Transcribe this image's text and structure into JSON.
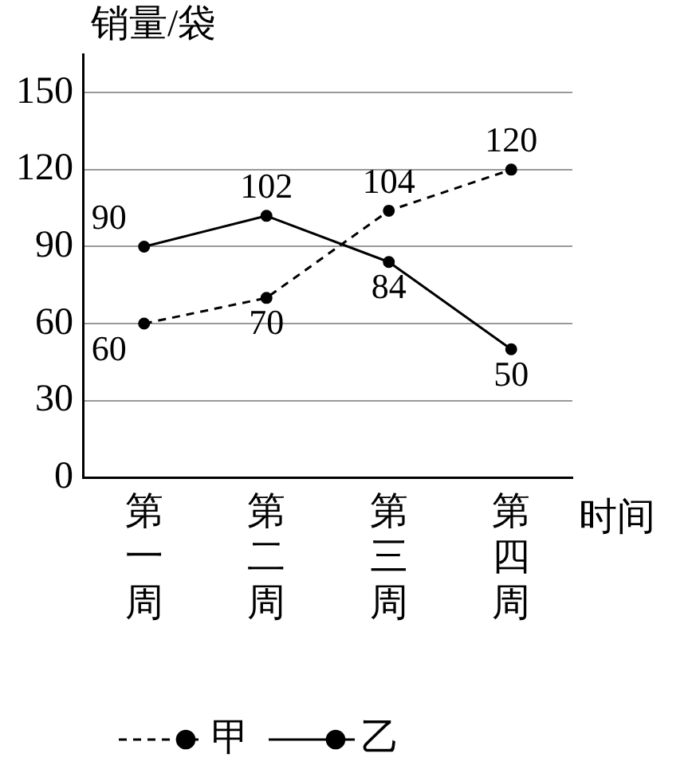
{
  "chart_data": {
    "type": "line",
    "xlabel": "时间",
    "ylabel": "销量/袋",
    "categories": [
      "第一周",
      "第二周",
      "第三周",
      "第四周"
    ],
    "series": [
      {
        "name": "甲",
        "color": "#000000",
        "values": [
          60,
          70,
          104,
          120
        ],
        "line_style": "dashed"
      },
      {
        "name": "乙",
        "color": "#000000",
        "values": [
          90,
          102,
          84,
          50
        ],
        "line_style": "solid"
      }
    ],
    "ylim": [
      0,
      165
    ],
    "yticks": [
      0,
      30,
      60,
      90,
      120,
      150
    ],
    "grid": "y",
    "legend": "bottom",
    "marker": "circle",
    "data_labels": true
  }
}
